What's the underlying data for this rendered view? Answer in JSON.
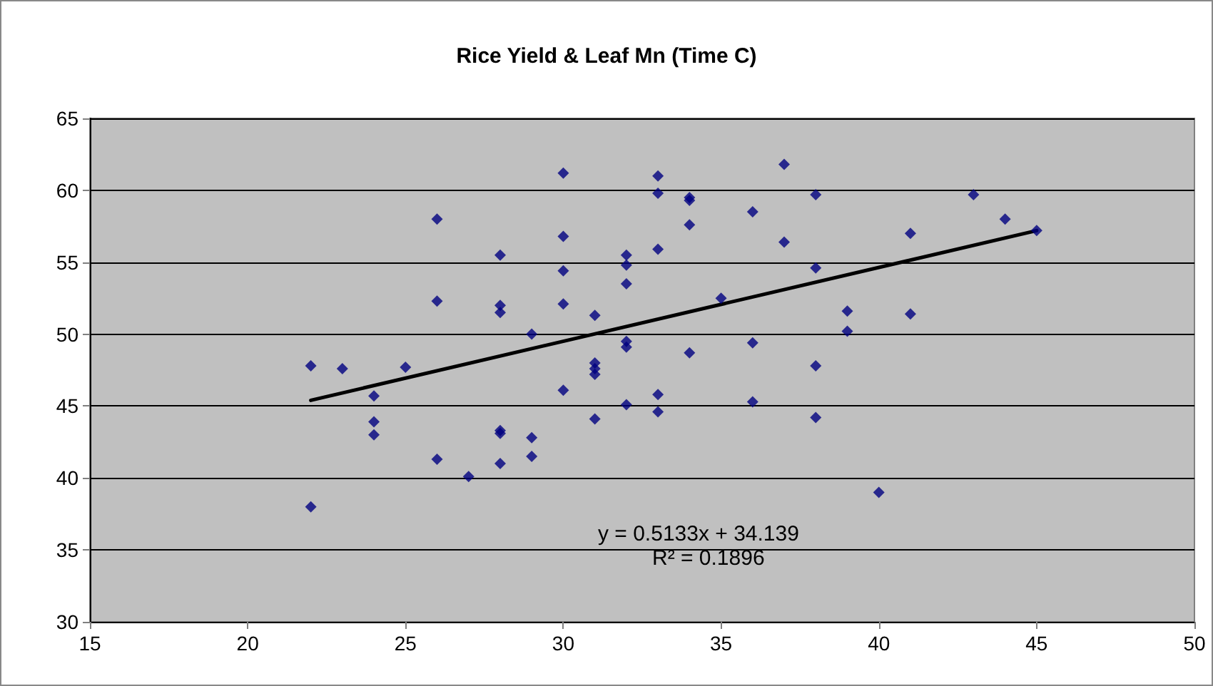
{
  "chart_data": {
    "type": "scatter",
    "title": "Rice Yield & Leaf Mn (Time C)",
    "marker": "diamond",
    "grid": "y",
    "xlim": [
      15,
      50
    ],
    "xticks": [
      15,
      20,
      25,
      30,
      35,
      40,
      45,
      50
    ],
    "ylim": [
      30,
      65
    ],
    "yticks": [
      30,
      35,
      40,
      45,
      50,
      55,
      60,
      65
    ],
    "annotations": [
      "y = 0.5133x + 34.139",
      "R² = 0.1896"
    ],
    "series": [
      {
        "color": "#000080",
        "x": [
          22,
          22,
          23,
          24,
          24,
          24,
          25,
          26,
          26,
          26,
          27,
          28,
          28,
          28,
          28,
          28,
          28,
          29,
          29,
          29,
          30,
          30,
          30,
          30,
          30,
          31,
          31,
          31,
          31,
          31,
          32,
          32,
          32,
          32,
          32,
          32,
          33,
          33,
          33,
          33,
          33,
          34,
          34,
          34,
          34,
          35,
          36,
          36,
          36,
          37,
          37,
          38,
          38,
          38,
          38,
          39,
          39,
          40,
          41,
          41,
          43,
          44,
          45
        ],
        "values": [
          47.8,
          38.0,
          47.6,
          45.7,
          43.9,
          43.0,
          47.7,
          58.0,
          52.3,
          41.3,
          40.1,
          55.5,
          52.0,
          51.5,
          43.3,
          43.1,
          41.0,
          50.0,
          42.8,
          41.5,
          61.2,
          56.8,
          54.4,
          52.1,
          46.1,
          51.3,
          48.0,
          47.6,
          47.2,
          44.1,
          55.5,
          54.8,
          53.5,
          49.5,
          49.1,
          45.1,
          61.0,
          59.8,
          55.9,
          45.8,
          44.6,
          59.5,
          59.3,
          57.6,
          48.7,
          52.5,
          58.5,
          49.4,
          45.3,
          61.8,
          56.4,
          59.7,
          54.6,
          47.8,
          44.2,
          51.6,
          50.2,
          39.0,
          57.0,
          51.4,
          59.7,
          58.0,
          57.2
        ]
      },
      {
        "type": "line",
        "color": "#000000",
        "marker": "none",
        "x": [
          22,
          45
        ],
        "values": [
          45.4,
          57.2
        ]
      }
    ]
  }
}
